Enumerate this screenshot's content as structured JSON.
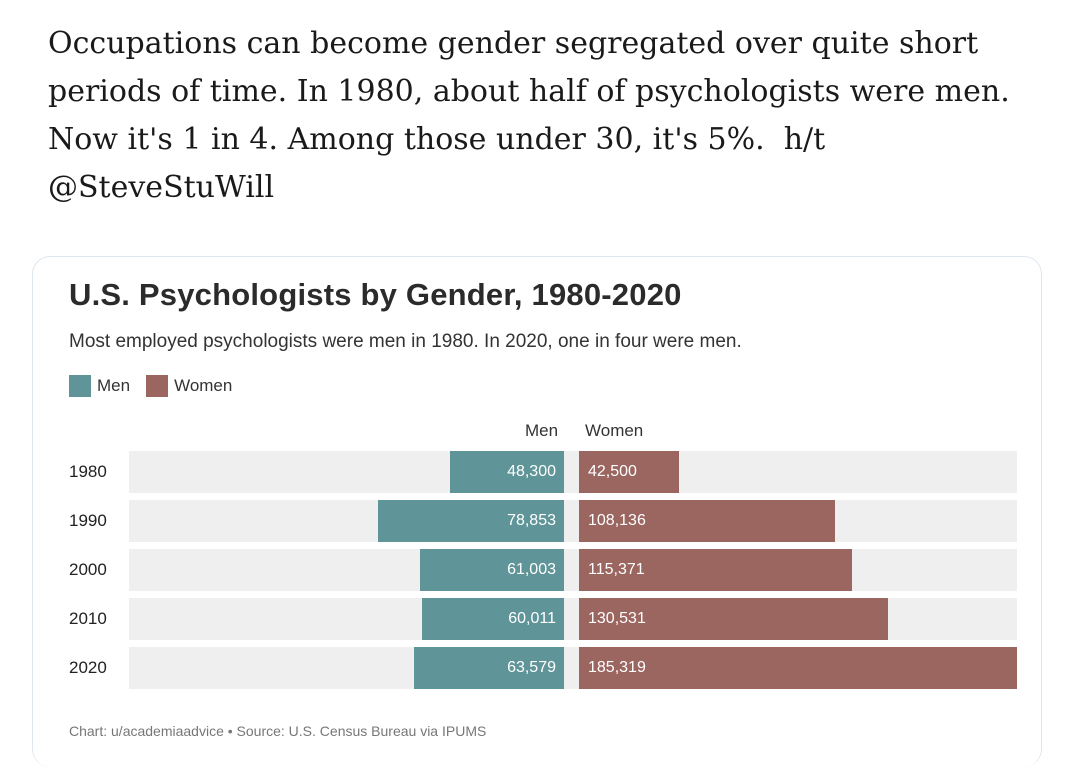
{
  "tweet": {
    "text": "Occupations can become gender segregated over quite short periods of time. In 1980, about half of psychologists were men. Now it's 1 in 4. Among those under 30, it's 5%.  h/t @SteveStuWill"
  },
  "chart_data": {
    "type": "bar",
    "title": "U.S. Psychologists by Gender, 1980-2020",
    "subtitle": "Most employed psychologists were men in 1980. In 2020, one in four were men.",
    "categories": [
      "1980",
      "1990",
      "2000",
      "2010",
      "2020"
    ],
    "series": [
      {
        "name": "Men",
        "values": [
          48300,
          78853,
          61003,
          60011,
          63579
        ],
        "labels": [
          "48,300",
          "78,853",
          "61,003",
          "60,011",
          "63,579"
        ],
        "color": "#5f9598"
      },
      {
        "name": "Women",
        "values": [
          42500,
          108136,
          115371,
          130531,
          185319
        ],
        "labels": [
          "42,500",
          "108,136",
          "115,371",
          "130,531",
          "185,319"
        ],
        "color": "#9b6560"
      }
    ],
    "column_headers": {
      "men": "Men",
      "women": "Women"
    },
    "legend_position": "top-left",
    "footer": "Chart: u/academiaadvice • Source: U.S. Census Bureau via IPUMS"
  }
}
